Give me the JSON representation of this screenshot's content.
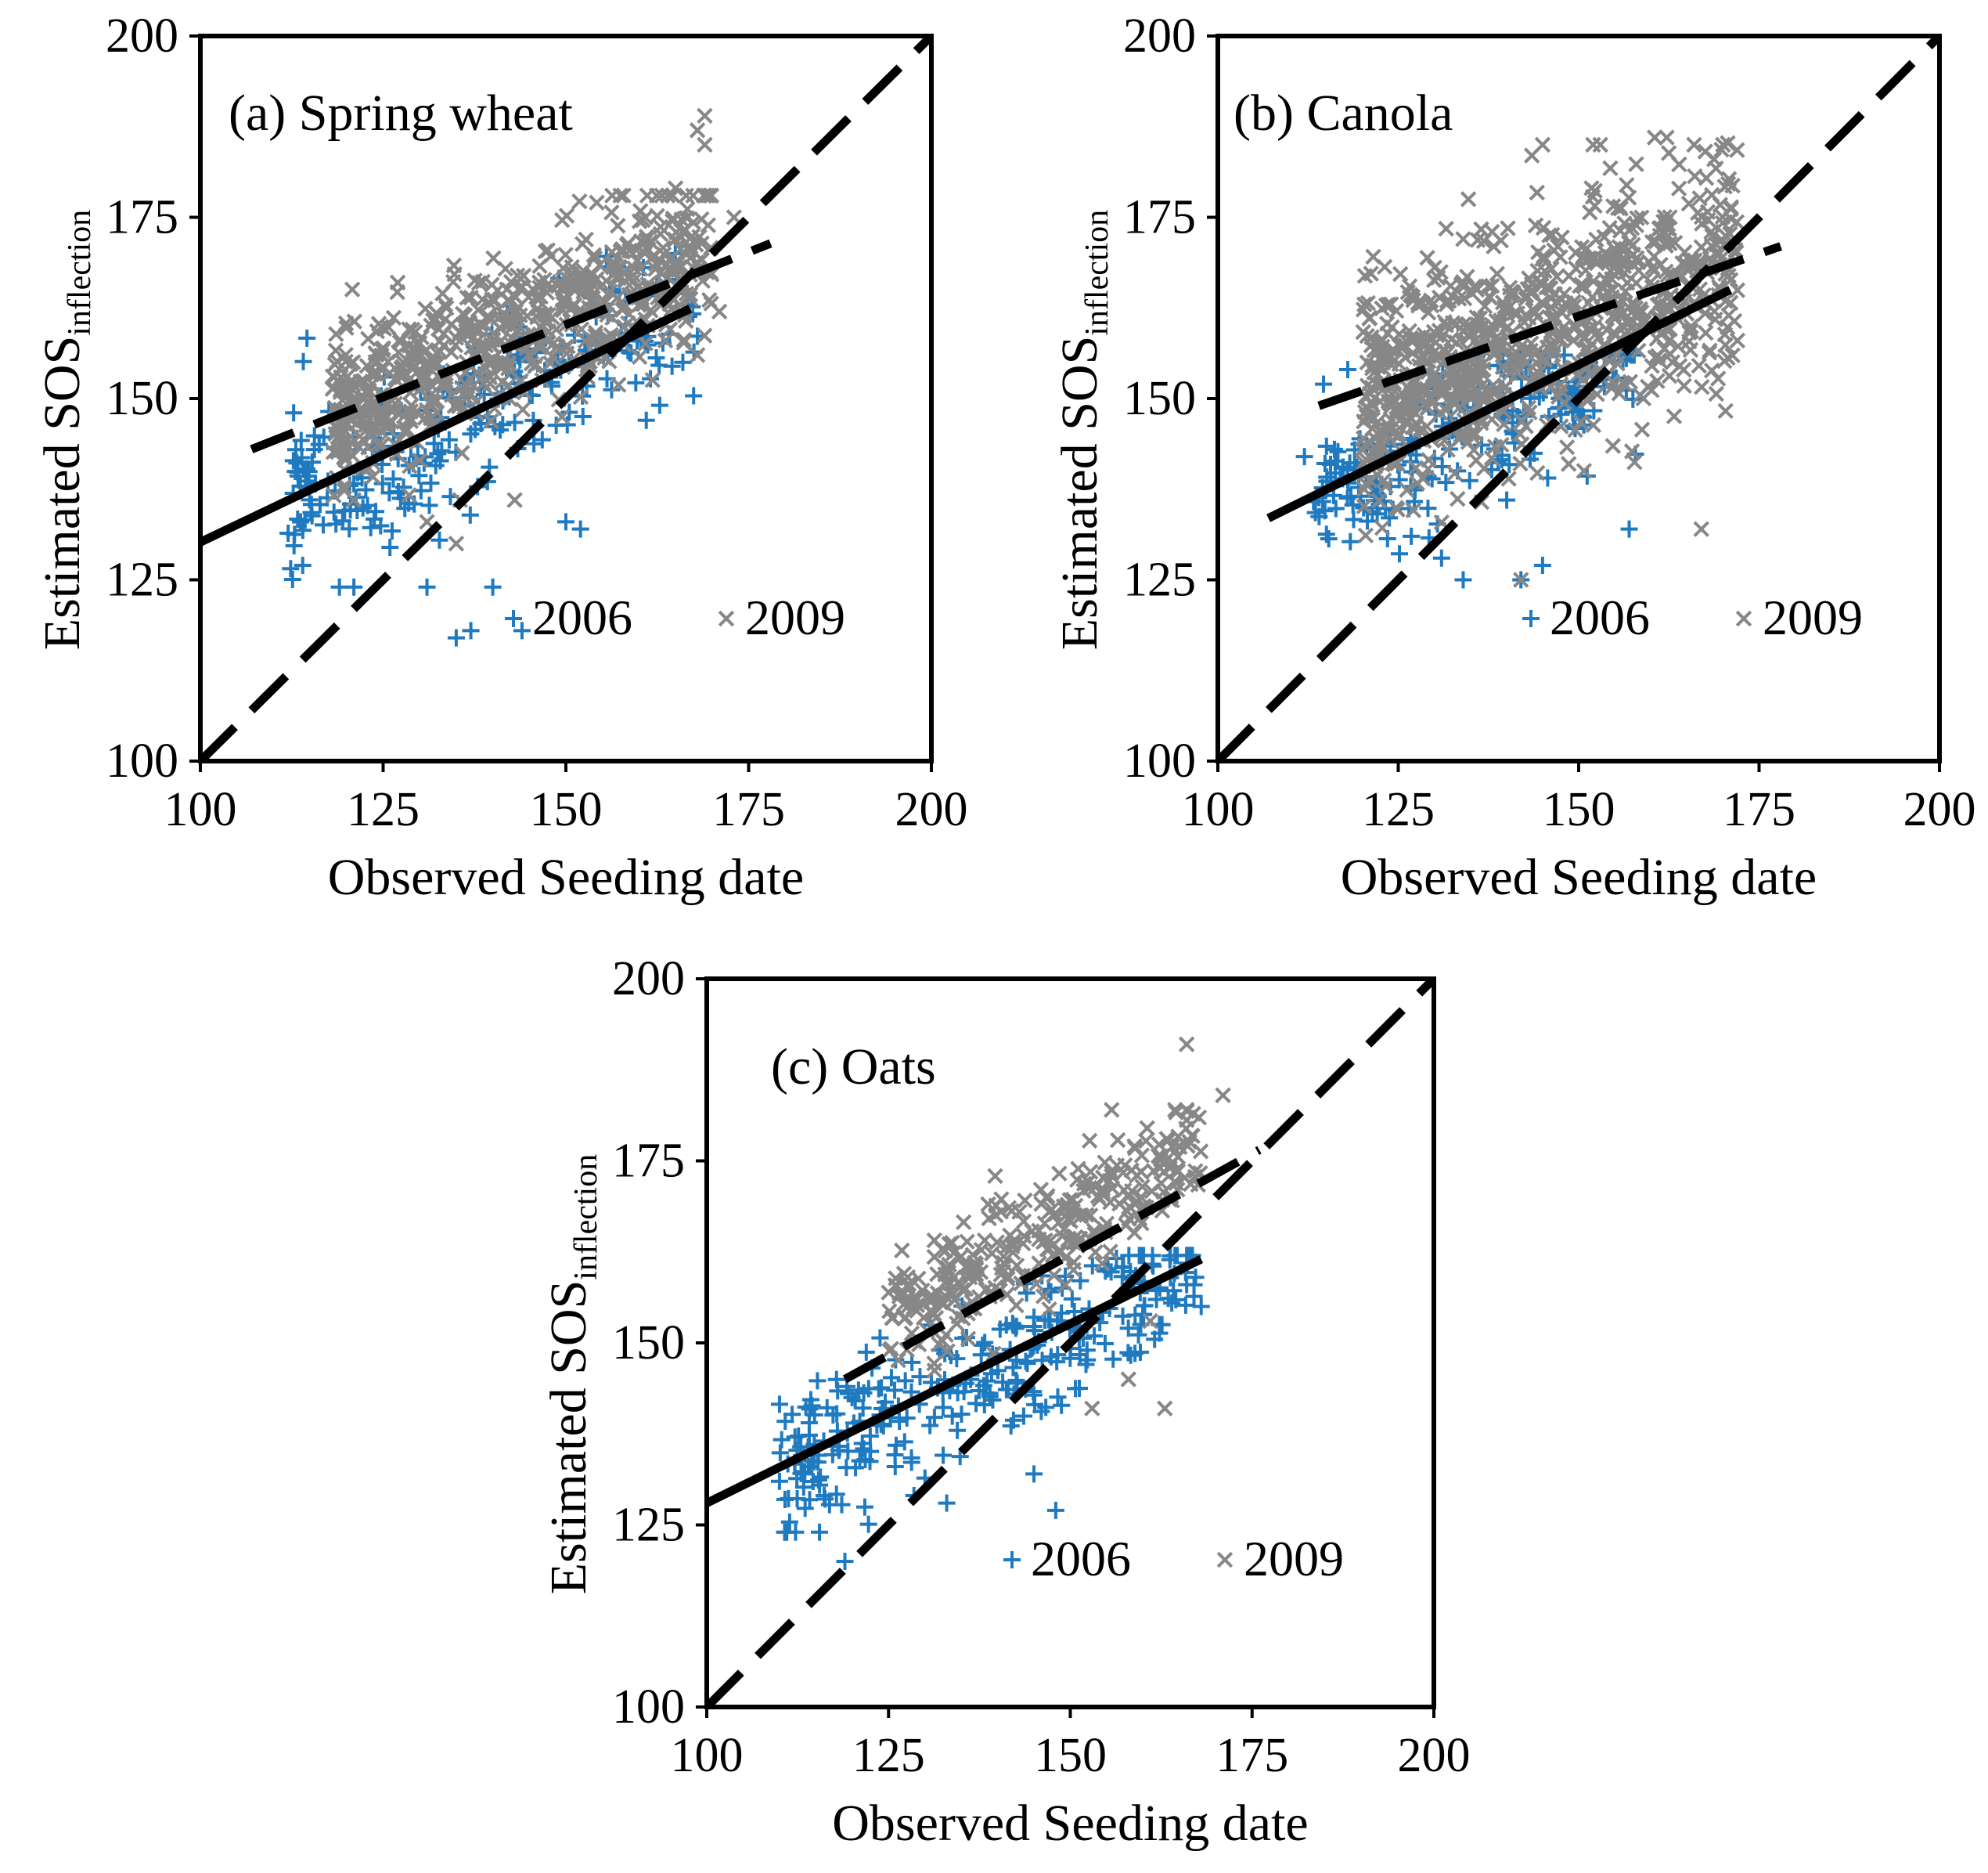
{
  "colors": {
    "series_2006": "#1f7ac0",
    "series_2009": "#878787",
    "lines": "#000000",
    "background": "#ffffff"
  },
  "chart_data": [
    {
      "type": "scatter",
      "title": "(a) Spring wheat",
      "xlabel": "Observed Seeding date",
      "ylabel": "Estimated SOS",
      "ylabel_subscript": "inflection",
      "xlim": [
        100,
        200
      ],
      "ylim": [
        100,
        200
      ],
      "xticks": [
        "100",
        "125",
        "150",
        "175",
        "200"
      ],
      "yticks": [
        "100",
        "125",
        "150",
        "175",
        "200"
      ],
      "legend": [
        "2006",
        "2009"
      ],
      "legend_position": "bottom-right",
      "series": [
        {
          "name": "2006",
          "marker": "plus",
          "cloud": {
            "x_range": [
              112,
              168
            ],
            "y_range": [
              124,
              170
            ],
            "n": 260,
            "seed": 11,
            "slope": 0.48,
            "intercept": 82,
            "spread": 6
          },
          "points": [
            [
              135,
              117
            ],
            [
              137,
              118
            ],
            [
              144,
              118
            ],
            [
              140,
              124
            ],
            [
              121,
              124
            ],
            [
              131,
              124
            ],
            [
              152,
              132
            ],
            [
              150,
              133
            ],
            [
              161,
              147
            ],
            [
              166,
              155
            ],
            [
              114,
              127
            ]
          ]
        },
        {
          "name": "2009",
          "marker": "x",
          "cloud": {
            "x_range": [
              118,
              170
            ],
            "y_range": [
              136,
              178
            ],
            "n": 700,
            "seed": 23,
            "slope": 0.45,
            "intercept": 95,
            "spread": 5.5
          },
          "points": [
            [
              169,
              189
            ],
            [
              168,
              187
            ],
            [
              169,
              185
            ],
            [
              171,
              162
            ],
            [
              173,
              175
            ],
            [
              165,
              179
            ],
            [
              127,
              166
            ],
            [
              131,
              133
            ],
            [
              135,
              130
            ],
            [
              143,
              136
            ],
            [
              168,
              156
            ]
          ]
        }
      ],
      "lines": [
        {
          "name": "2006 regression",
          "style": "solid",
          "x": [
            100,
            167
          ],
          "y": [
            130.2,
            162.4
          ]
        },
        {
          "name": "2009 regression",
          "style": "dashed",
          "x": [
            107,
            178
          ],
          "y": [
            143.0,
            171.4
          ]
        },
        {
          "name": "1:1 line",
          "style": "dashed",
          "x": [
            100,
            200
          ],
          "y": [
            100,
            200
          ]
        }
      ]
    },
    {
      "type": "scatter",
      "title": "(b) Canola",
      "xlabel": "Observed Seeding date",
      "ylabel": "Estimated SOS",
      "ylabel_subscript": "inflection",
      "xlim": [
        100,
        200
      ],
      "ylim": [
        100,
        200
      ],
      "xticks": [
        "100",
        "125",
        "150",
        "175",
        "200"
      ],
      "yticks": [
        "100",
        "125",
        "150",
        "175",
        "200"
      ],
      "legend": [
        "2006",
        "2009"
      ],
      "legend_position": "bottom-right",
      "series": [
        {
          "name": "2006",
          "marker": "plus",
          "cloud": {
            "x_range": [
              113,
              158
            ],
            "y_range": [
              126,
              156
            ],
            "n": 230,
            "seed": 37,
            "slope": 0.4,
            "intercept": 91,
            "spread": 5
          },
          "points": [
            [
              112,
              142
            ],
            [
              118,
              154
            ],
            [
              134,
              125
            ],
            [
              142,
              125
            ],
            [
              145,
              127
            ],
            [
              157,
              132
            ],
            [
              131,
              128
            ]
          ]
        },
        {
          "name": "2009",
          "marker": "x",
          "cloud": {
            "x_range": [
              120,
              172
            ],
            "y_range": [
              130,
              186
            ],
            "n": 900,
            "seed": 53,
            "slope": 0.38,
            "intercept": 104,
            "spread": 8
          },
          "points": [
            [
              145,
              185
            ],
            [
              152,
              185
            ],
            [
              153,
              185
            ],
            [
              166,
              185
            ],
            [
              170,
              185
            ],
            [
              167,
              132
            ],
            [
              142,
              125
            ],
            [
              172,
              158
            ],
            [
              124,
              163
            ],
            [
              134,
              172
            ],
            [
              138,
              173
            ]
          ]
        }
      ],
      "lines": [
        {
          "name": "2006 regression",
          "style": "solid",
          "x": [
            107,
            171
          ],
          "y": [
            133.5,
            165.0
          ]
        },
        {
          "name": "2009 regression",
          "style": "dashed",
          "x": [
            114,
            178
          ],
          "y": [
            149.0,
            171.0
          ]
        },
        {
          "name": "1:1 line",
          "style": "dashed",
          "x": [
            100,
            200
          ],
          "y": [
            100,
            200
          ]
        }
      ]
    },
    {
      "type": "scatter",
      "title": "(c) Oats",
      "xlabel": "Observed Seeding date",
      "ylabel": "Estimated SOS",
      "ylabel_subscript": "inflection",
      "xlim": [
        100,
        200
      ],
      "ylim": [
        100,
        200
      ],
      "xticks": [
        "100",
        "125",
        "150",
        "175",
        "200"
      ],
      "yticks": [
        "100",
        "125",
        "150",
        "175",
        "200"
      ],
      "legend": [
        "2006",
        "2009"
      ],
      "legend_position": "bottom-right",
      "series": [
        {
          "name": "2006",
          "marker": "plus",
          "cloud": {
            "x_range": [
              110,
              168
            ],
            "y_range": [
              124,
              162
            ],
            "n": 300,
            "seed": 71,
            "slope": 0.48,
            "intercept": 80,
            "spread": 5
          },
          "points": [
            [
              110,
              131
            ],
            [
              111,
              124
            ],
            [
              119,
              120
            ],
            [
              133,
              128
            ],
            [
              148,
              127
            ],
            [
              145,
              132
            ],
            [
              168,
              155
            ],
            [
              166,
              158
            ]
          ]
        },
        {
          "name": "2009",
          "marker": "x",
          "cloud": {
            "x_range": [
              125,
              168
            ],
            "y_range": [
              140,
              182
            ],
            "n": 320,
            "seed": 89,
            "slope": 0.55,
            "intercept": 84,
            "spread": 4
          },
          "points": [
            [
              166,
              191
            ],
            [
              171,
              184
            ],
            [
              166,
              182
            ],
            [
              163,
              141
            ],
            [
              158,
              145
            ],
            [
              161,
              153
            ],
            [
              153,
              141
            ],
            [
              143,
              168
            ]
          ]
        }
      ],
      "lines": [
        {
          "name": "2006 regression",
          "style": "solid",
          "x": [
            100,
            168
          ],
          "y": [
            128.0,
            161.5
          ]
        },
        {
          "name": "2009 regression",
          "style": "dashed",
          "x": [
            119,
            176
          ],
          "y": [
            145.0,
            176.5
          ]
        },
        {
          "name": "1:1 line",
          "style": "dashed",
          "x": [
            100,
            200
          ],
          "y": [
            100,
            200
          ]
        }
      ]
    }
  ]
}
